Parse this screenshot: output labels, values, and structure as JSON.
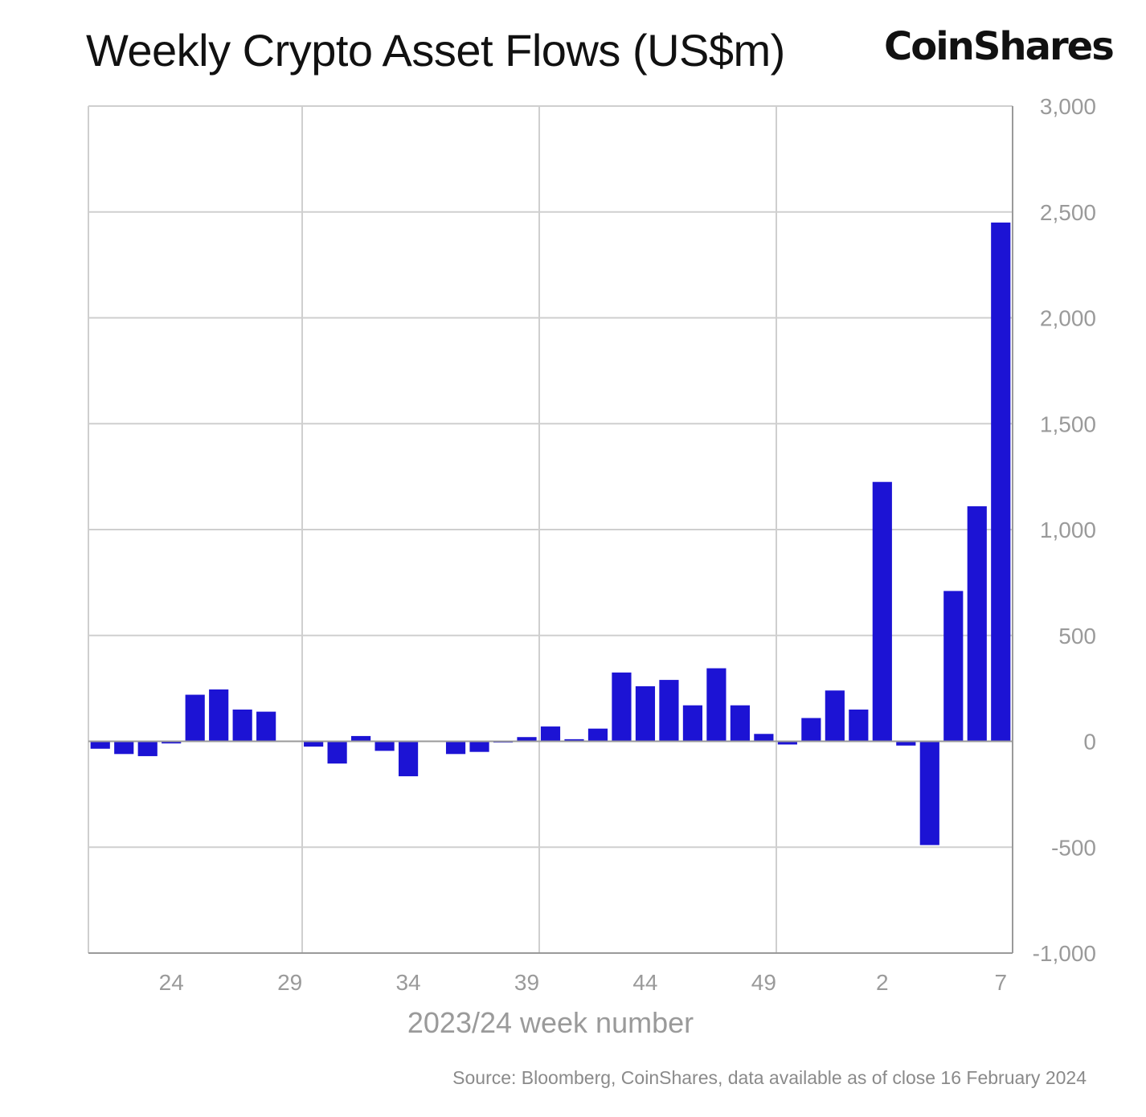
{
  "header": {
    "title": "Weekly Crypto Asset Flows (US$m)",
    "brand": "CoinShares"
  },
  "footer": {
    "source": "Source: Bloomberg, CoinShares, data available as of close 16 February 2024"
  },
  "colors": {
    "bar": "#1c13d4",
    "grid": "#cfcfcf",
    "axis": "#9a9a9a"
  },
  "chart_data": {
    "type": "bar",
    "title": "Weekly Crypto Asset Flows (US$m)",
    "xlabel": "2023/24 week number",
    "ylabel": "",
    "ylim": [
      -1000,
      3000
    ],
    "y_ticks": [
      3000,
      2500,
      2000,
      1500,
      1000,
      500,
      0,
      -500,
      -1000
    ],
    "y_tick_labels": [
      "3,000",
      "2,500",
      "2,000",
      "1,500",
      "1,000",
      "500",
      "0",
      "-500",
      "-1,000"
    ],
    "x_tick_labels": [
      "24",
      "29",
      "34",
      "39",
      "44",
      "49",
      "2",
      "7"
    ],
    "y_axis_position": "right",
    "grid": true,
    "categories": [
      "21",
      "22",
      "23",
      "24",
      "25",
      "26",
      "27",
      "28",
      "29",
      "30",
      "31",
      "32",
      "33",
      "34",
      "35",
      "36",
      "37",
      "38",
      "39",
      "40",
      "41",
      "42",
      "43",
      "44",
      "45",
      "46",
      "47",
      "48",
      "49",
      "50",
      "51",
      "52",
      "1",
      "2",
      "3",
      "4",
      "5",
      "6",
      "7"
    ],
    "values": [
      -35,
      -60,
      -70,
      -10,
      220,
      245,
      150,
      140,
      0,
      -25,
      -105,
      25,
      -45,
      -165,
      0,
      -60,
      -50,
      -5,
      20,
      70,
      10,
      60,
      325,
      260,
      290,
      170,
      345,
      170,
      35,
      -15,
      110,
      240,
      150,
      1225,
      -20,
      -490,
      710,
      1110,
      2450
    ]
  }
}
